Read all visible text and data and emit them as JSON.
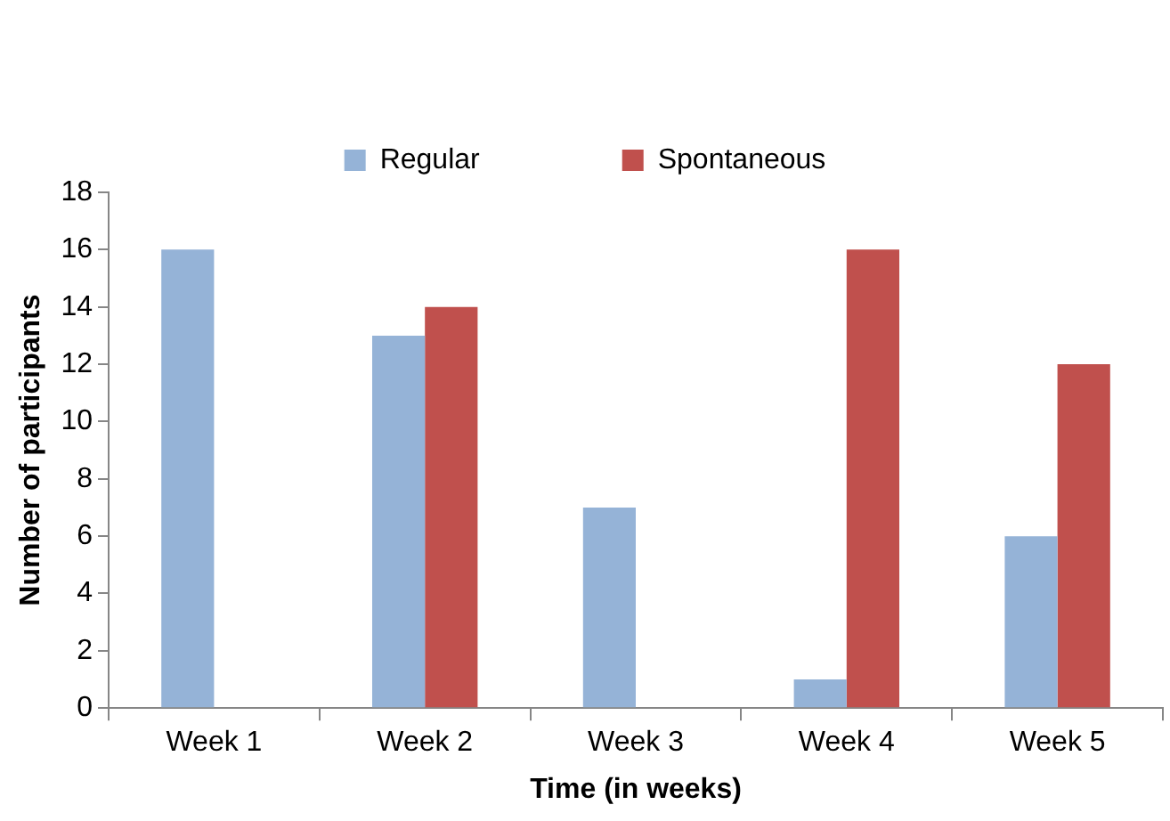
{
  "chart_data": {
    "type": "bar",
    "xlabel": "Time (in weeks)",
    "ylabel": "Number of participants",
    "categories": [
      "Week 1",
      "Week 2",
      "Week 3",
      "Week 4",
      "Week 5"
    ],
    "series": [
      {
        "name": "Regular",
        "color": "#95b3d7",
        "values": [
          16,
          13,
          7,
          1,
          6
        ]
      },
      {
        "name": "Spontaneous",
        "color": "#c0504d",
        "values": [
          0,
          14,
          0,
          16,
          12
        ]
      }
    ],
    "ylim": [
      0,
      18
    ],
    "yticks": [
      0,
      2,
      4,
      6,
      8,
      10,
      12,
      14,
      16,
      18
    ],
    "grid": false,
    "legend": "top"
  }
}
